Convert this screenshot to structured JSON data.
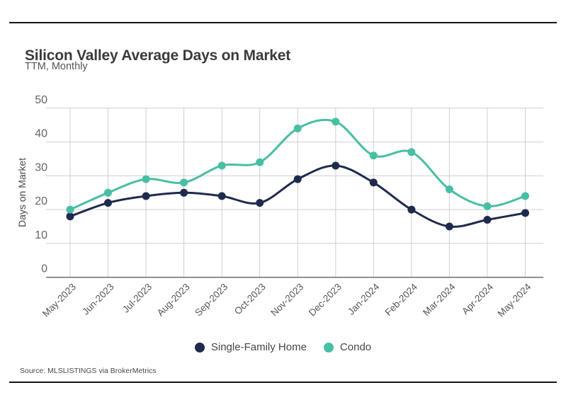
{
  "chart_data": {
    "type": "line",
    "title": "Silicon Valley Average Days on Market",
    "subtitle": "TTM, Monthly",
    "xlabel": "",
    "ylabel": "Days on Market",
    "source": "Source: MLSLISTINGS via BrokerMetrics",
    "categories": [
      "May-2023",
      "Jun-2023",
      "Jul-2023",
      "Aug-2023",
      "Sep-2023",
      "Oct-2023",
      "Nov-2023",
      "Dec-2023",
      "Jan-2024",
      "Feb-2024",
      "Mar-2024",
      "Apr-2024",
      "May-2024"
    ],
    "series": [
      {
        "name": "Single-Family Home",
        "color": "#1F2A4D",
        "values": [
          18,
          22,
          24,
          25,
          24,
          22,
          29,
          33,
          28,
          20,
          15,
          17,
          19
        ]
      },
      {
        "name": "Condo",
        "color": "#47BFA3",
        "values": [
          20,
          25,
          29,
          28,
          33,
          34,
          44,
          46,
          36,
          37,
          26,
          21,
          24
        ]
      }
    ],
    "ylim": [
      0,
      50
    ],
    "yticks": [
      0,
      10,
      20,
      30,
      40,
      50
    ],
    "grid": true,
    "legend_position": "bottom",
    "marker": "circle"
  },
  "colors": {
    "single_family": "#1F2A4D",
    "condo": "#47BFA3",
    "gridline": "#cfcfcf",
    "axis_line": "#6b6b6b",
    "frame_border": "#161616"
  }
}
